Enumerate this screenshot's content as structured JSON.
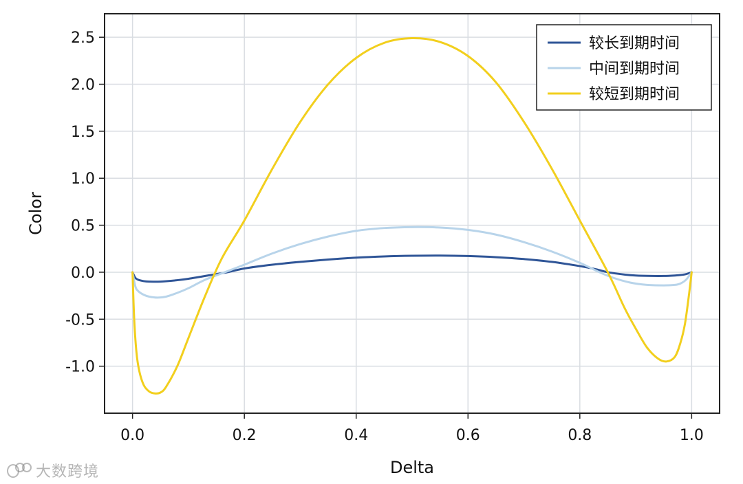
{
  "chart_data": {
    "type": "line",
    "title": "",
    "xlabel": "Delta",
    "ylabel": "Color",
    "xlim": [
      -0.05,
      1.05
    ],
    "ylim": [
      -1.5,
      2.75
    ],
    "xticks": [
      0.0,
      0.2,
      0.4,
      0.6,
      0.8,
      1.0
    ],
    "xtick_labels": [
      "0.0",
      "0.2",
      "0.4",
      "0.6",
      "0.8",
      "1.0"
    ],
    "yticks": [
      -1.0,
      -0.5,
      0.0,
      0.5,
      1.0,
      1.5,
      2.0,
      2.5
    ],
    "ytick_labels": [
      "-1.0",
      "-0.5",
      "0.0",
      "0.5",
      "1.0",
      "1.5",
      "2.0",
      "2.5"
    ],
    "grid": true,
    "legend_position": "top-right",
    "series": [
      {
        "name": "较长到期时间",
        "color": "#2f5597",
        "x": [
          0.0,
          0.005,
          0.01,
          0.02,
          0.03,
          0.05,
          0.08,
          0.1,
          0.13,
          0.15,
          0.17,
          0.2,
          0.25,
          0.3,
          0.35,
          0.4,
          0.45,
          0.5,
          0.55,
          0.6,
          0.65,
          0.7,
          0.75,
          0.8,
          0.83,
          0.85,
          0.88,
          0.9,
          0.93,
          0.95,
          0.97,
          0.98,
          0.99,
          1.0
        ],
        "y": [
          0.0,
          -0.06,
          -0.08,
          -0.095,
          -0.1,
          -0.1,
          -0.085,
          -0.07,
          -0.04,
          -0.02,
          0.0,
          0.04,
          0.08,
          0.11,
          0.135,
          0.155,
          0.168,
          0.175,
          0.177,
          0.172,
          0.16,
          0.14,
          0.11,
          0.065,
          0.03,
          0.0,
          -0.025,
          -0.035,
          -0.04,
          -0.04,
          -0.035,
          -0.03,
          -0.02,
          0.0
        ]
      },
      {
        "name": "中间到期时间",
        "color": "#b8d4ea",
        "x": [
          0.0,
          0.005,
          0.01,
          0.02,
          0.03,
          0.045,
          0.06,
          0.08,
          0.1,
          0.13,
          0.165,
          0.2,
          0.25,
          0.3,
          0.35,
          0.4,
          0.45,
          0.5,
          0.55,
          0.6,
          0.65,
          0.7,
          0.75,
          0.8,
          0.835,
          0.86,
          0.89,
          0.92,
          0.95,
          0.97,
          0.98,
          0.99,
          1.0
        ],
        "y": [
          0.0,
          -0.15,
          -0.2,
          -0.24,
          -0.26,
          -0.27,
          -0.26,
          -0.22,
          -0.17,
          -0.08,
          0.0,
          0.08,
          0.2,
          0.3,
          0.38,
          0.44,
          0.47,
          0.48,
          0.475,
          0.45,
          0.4,
          0.32,
          0.22,
          0.1,
          0.0,
          -0.06,
          -0.11,
          -0.135,
          -0.14,
          -0.135,
          -0.12,
          -0.08,
          0.0
        ]
      },
      {
        "name": "较短到期时间",
        "color": "#f2cf1d",
        "x": [
          0.0,
          0.003,
          0.007,
          0.012,
          0.02,
          0.03,
          0.04,
          0.05,
          0.06,
          0.08,
          0.1,
          0.13,
          0.16,
          0.2,
          0.25,
          0.3,
          0.35,
          0.4,
          0.45,
          0.5,
          0.55,
          0.6,
          0.65,
          0.7,
          0.75,
          0.8,
          0.85,
          0.88,
          0.9,
          0.92,
          0.94,
          0.955,
          0.97,
          0.98,
          0.988,
          0.995,
          1.0
        ],
        "y": [
          0.0,
          -0.5,
          -0.85,
          -1.05,
          -1.2,
          -1.27,
          -1.29,
          -1.28,
          -1.22,
          -1.0,
          -0.7,
          -0.25,
          0.15,
          0.55,
          1.1,
          1.6,
          2.0,
          2.28,
          2.44,
          2.49,
          2.45,
          2.3,
          2.02,
          1.6,
          1.1,
          0.55,
          0.0,
          -0.38,
          -0.6,
          -0.8,
          -0.92,
          -0.95,
          -0.9,
          -0.75,
          -0.55,
          -0.25,
          0.0
        ]
      }
    ]
  },
  "watermark": {
    "text": "大数跨境"
  }
}
